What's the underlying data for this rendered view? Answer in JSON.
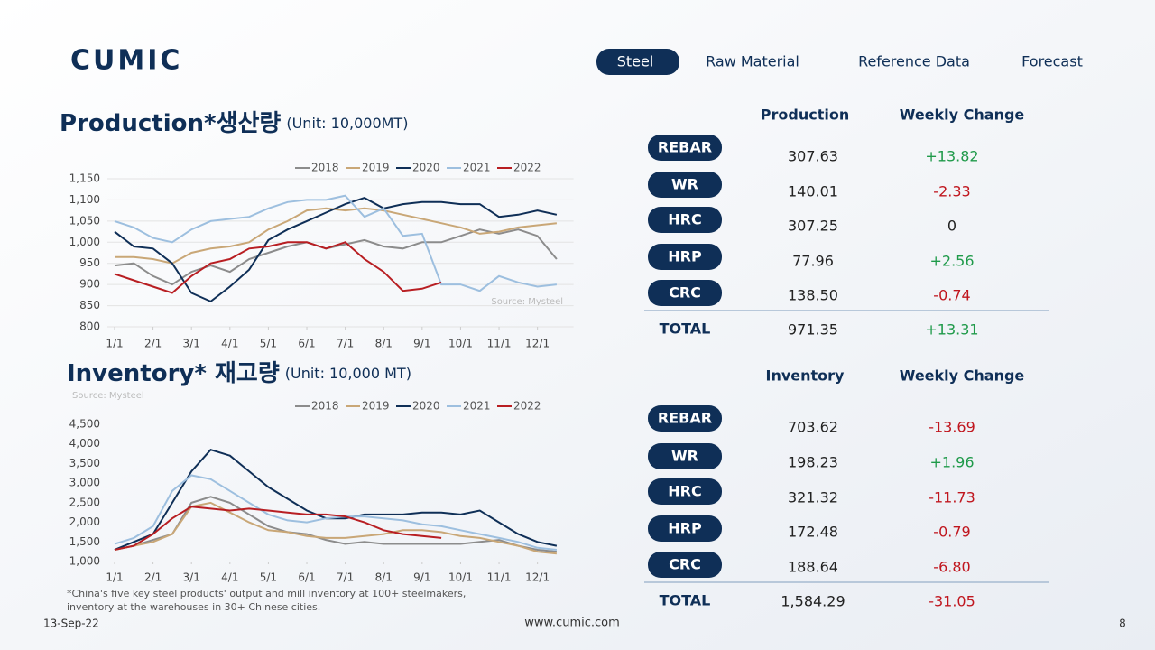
{
  "logo": "CUMIC",
  "nav": [
    "Steel",
    "Raw Material",
    "Reference Data",
    "Forecast"
  ],
  "chart_data": [
    {
      "type": "line",
      "title": "Production*생산량",
      "subtitle": "(Unit: 10,000MT)",
      "source": "Source: Mysteel",
      "grid": true,
      "x": [
        1,
        1.5,
        2,
        2.5,
        3,
        3.5,
        4,
        4.5,
        5,
        5.5,
        6,
        6.5,
        7,
        7.5,
        8,
        8.5,
        9,
        9.5,
        10,
        10.5,
        11,
        11.5,
        12,
        12.5
      ],
      "xlim": [
        1,
        12.75
      ],
      "xticks": [
        {
          "value": 1,
          "label": "1/1"
        },
        {
          "value": 2,
          "label": "2/1"
        },
        {
          "value": 3,
          "label": "3/1"
        },
        {
          "value": 4,
          "label": "4/1"
        },
        {
          "value": 5,
          "label": "5/1"
        },
        {
          "value": 6,
          "label": "6/1"
        },
        {
          "value": 7,
          "label": "7/1"
        },
        {
          "value": 8,
          "label": "8/1"
        },
        {
          "value": 9,
          "label": "9/1"
        },
        {
          "value": 10,
          "label": "10/1"
        },
        {
          "value": 11,
          "label": "11/1"
        },
        {
          "value": 12,
          "label": "12/1"
        }
      ],
      "ylim": [
        800,
        1150
      ],
      "yticks": [
        800,
        850,
        900,
        950,
        {
          "value": 1000,
          "label": "1,000"
        },
        {
          "value": 1050,
          "label": "1,050"
        },
        {
          "value": 1100,
          "label": "1,100"
        },
        {
          "value": 1150,
          "label": "1,150"
        }
      ],
      "series": [
        {
          "name": "2018",
          "color": "#8c8c8c",
          "values": [
            945,
            950,
            920,
            900,
            930,
            945,
            930,
            960,
            975,
            990,
            1000,
            985,
            995,
            1005,
            990,
            985,
            1000,
            1000,
            1015,
            1030,
            1020,
            1030,
            1015,
            960
          ]
        },
        {
          "name": "2019",
          "color": "#c9a777",
          "values": [
            965,
            965,
            960,
            950,
            975,
            985,
            990,
            1000,
            1030,
            1050,
            1075,
            1080,
            1075,
            1080,
            1075,
            1065,
            1055,
            1045,
            1035,
            1020,
            1025,
            1035,
            1040,
            1045
          ]
        },
        {
          "name": "2020",
          "color": "#0f2f57",
          "values": [
            1025,
            990,
            985,
            950,
            880,
            860,
            895,
            935,
            1005,
            1030,
            1050,
            1070,
            1090,
            1105,
            1080,
            1090,
            1095,
            1095,
            1090,
            1090,
            1060,
            1065,
            1075,
            1065
          ]
        },
        {
          "name": "2021",
          "color": "#9dbfdf",
          "values": [
            1050,
            1035,
            1010,
            1000,
            1030,
            1050,
            1055,
            1060,
            1080,
            1095,
            1100,
            1100,
            1110,
            1060,
            1080,
            1015,
            1020,
            900,
            900,
            885,
            920,
            905,
            895,
            900
          ]
        },
        {
          "name": "2022",
          "color": "#b81e22",
          "values": [
            925,
            910,
            895,
            880,
            920,
            950,
            960,
            985,
            990,
            1000,
            1000,
            985,
            1000,
            960,
            930,
            885,
            890,
            905,
            null,
            null,
            null,
            null,
            null,
            null
          ]
        }
      ]
    },
    {
      "type": "line",
      "title": "Inventory* 재고량",
      "subtitle": "(Unit: 10,000 MT)",
      "source": "Source: Mysteel",
      "grid": false,
      "x": [
        1,
        1.5,
        2,
        2.5,
        3,
        3.5,
        4,
        4.5,
        5,
        5.5,
        6,
        6.5,
        7,
        7.5,
        8,
        8.5,
        9,
        9.5,
        10,
        10.5,
        11,
        11.5,
        12,
        12.5
      ],
      "xlim": [
        1,
        12.75
      ],
      "xticks": [
        {
          "value": 1,
          "label": "1/1"
        },
        {
          "value": 2,
          "label": "2/1"
        },
        {
          "value": 3,
          "label": "3/1"
        },
        {
          "value": 4,
          "label": "4/1"
        },
        {
          "value": 5,
          "label": "5/1"
        },
        {
          "value": 6,
          "label": "6/1"
        },
        {
          "value": 7,
          "label": "7/1"
        },
        {
          "value": 8,
          "label": "8/1"
        },
        {
          "value": 9,
          "label": "9/1"
        },
        {
          "value": 10,
          "label": "10/1"
        },
        {
          "value": 11,
          "label": "11/1"
        },
        {
          "value": 12,
          "label": "12/1"
        }
      ],
      "ylim": [
        1000,
        4500
      ],
      "yticks": [
        {
          "value": 1000,
          "label": "1,000"
        },
        {
          "value": 1500,
          "label": "1,500"
        },
        {
          "value": 2000,
          "label": "2,000"
        },
        {
          "value": 2500,
          "label": "2,500"
        },
        {
          "value": 3000,
          "label": "3,000"
        },
        {
          "value": 3500,
          "label": "3,500"
        },
        {
          "value": 4000,
          "label": "4,000"
        },
        {
          "value": 4500,
          "label": "4,500"
        }
      ],
      "series": [
        {
          "name": "2018",
          "color": "#8c8c8c",
          "values": [
            1300,
            1400,
            1550,
            1700,
            2500,
            2650,
            2500,
            2200,
            1900,
            1750,
            1700,
            1550,
            1450,
            1500,
            1450,
            1450,
            1450,
            1450,
            1450,
            1500,
            1550,
            1400,
            1300,
            1250
          ]
        },
        {
          "name": "2019",
          "color": "#c9a777",
          "values": [
            1300,
            1400,
            1500,
            1700,
            2400,
            2500,
            2250,
            2000,
            1800,
            1750,
            1650,
            1600,
            1600,
            1650,
            1700,
            1800,
            1800,
            1750,
            1650,
            1600,
            1500,
            1400,
            1250,
            1200
          ]
        },
        {
          "name": "2020",
          "color": "#0f2f57",
          "values": [
            1300,
            1500,
            1700,
            2500,
            3300,
            3850,
            3700,
            3300,
            2900,
            2600,
            2300,
            2100,
            2100,
            2200,
            2200,
            2200,
            2250,
            2250,
            2200,
            2300,
            2000,
            1700,
            1500,
            1400
          ]
        },
        {
          "name": "2021",
          "color": "#9dbfdf",
          "values": [
            1450,
            1600,
            1900,
            2800,
            3200,
            3100,
            2800,
            2500,
            2200,
            2050,
            2000,
            2100,
            2150,
            2150,
            2100,
            2050,
            1950,
            1900,
            1800,
            1700,
            1600,
            1500,
            1350,
            1300
          ]
        },
        {
          "name": "2022",
          "color": "#b81e22",
          "values": [
            1300,
            1400,
            1700,
            2100,
            2400,
            2350,
            2300,
            2350,
            2300,
            2250,
            2200,
            2200,
            2150,
            2000,
            1800,
            1700,
            1650,
            1600,
            null,
            null,
            null,
            null,
            null,
            null
          ]
        }
      ]
    }
  ],
  "tables": [
    {
      "headers": [
        "Production",
        "Weekly Change"
      ],
      "rows": [
        [
          "REBAR",
          "307.63",
          "+13.82"
        ],
        [
          "WR",
          "140.01",
          "-2.33"
        ],
        [
          "HRC",
          "307.25",
          "0"
        ],
        [
          "HRP",
          "77.96",
          "+2.56"
        ],
        [
          "CRC",
          "138.50",
          "-0.74"
        ]
      ],
      "total": [
        "TOTAL",
        "971.35",
        "+13.31"
      ]
    },
    {
      "headers": [
        "Inventory",
        "Weekly Change"
      ],
      "rows": [
        [
          "REBAR",
          "703.62",
          "-13.69"
        ],
        [
          "WR",
          "198.23",
          "+1.96"
        ],
        [
          "HRC",
          "321.32",
          "-11.73"
        ],
        [
          "HRP",
          "172.48",
          "-0.79"
        ],
        [
          "CRC",
          "188.64",
          "-6.80"
        ]
      ],
      "total": [
        "TOTAL",
        "1,584.29",
        "-31.05"
      ]
    }
  ],
  "footnote": [
    "*China's five key steel products' output and mill inventory at 100+ steelmakers,",
    "inventory at the warehouses in 30+ Chinese cities."
  ],
  "date": "13-Sep-22",
  "url": "www.cumic.com",
  "page": "8"
}
